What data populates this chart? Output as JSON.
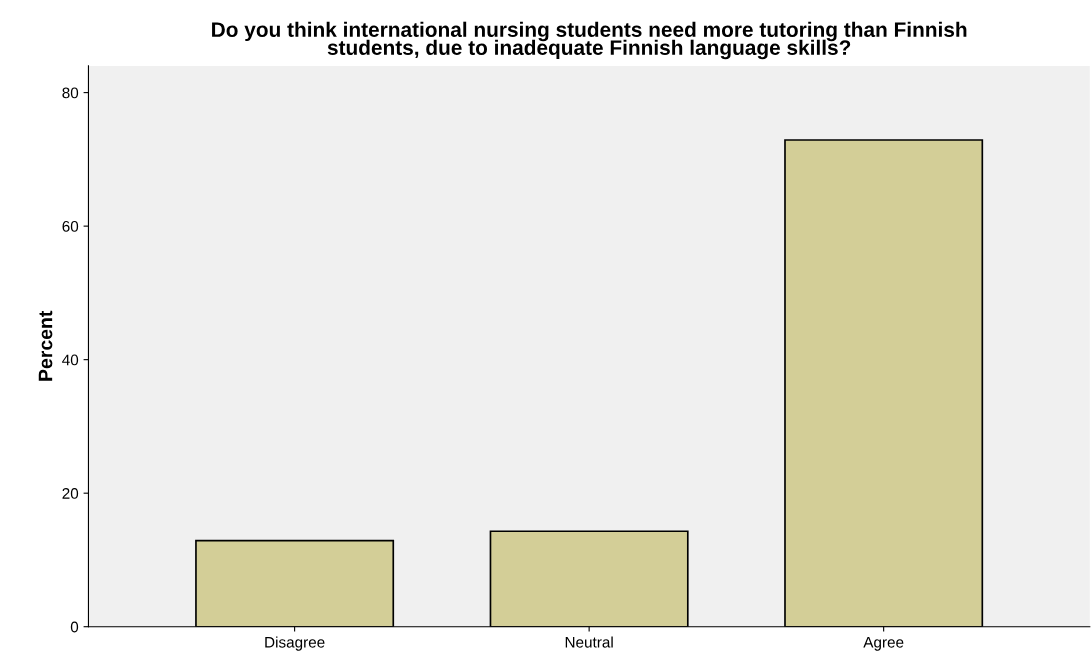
{
  "chart_data": {
    "type": "bar",
    "title": "Do you think international nursing students need more tutoring than Finnish\nstudents, due to inadequate Finnish language skills?",
    "ylabel": "Percent",
    "categories": [
      "Disagree",
      "Neutral",
      "Agree"
    ],
    "values": [
      12.9,
      14.3,
      72.9
    ],
    "color": "#d3ce97",
    "ylim": [
      0,
      84
    ],
    "yticks": [
      0,
      20,
      40,
      60,
      80
    ],
    "grid": false
  }
}
